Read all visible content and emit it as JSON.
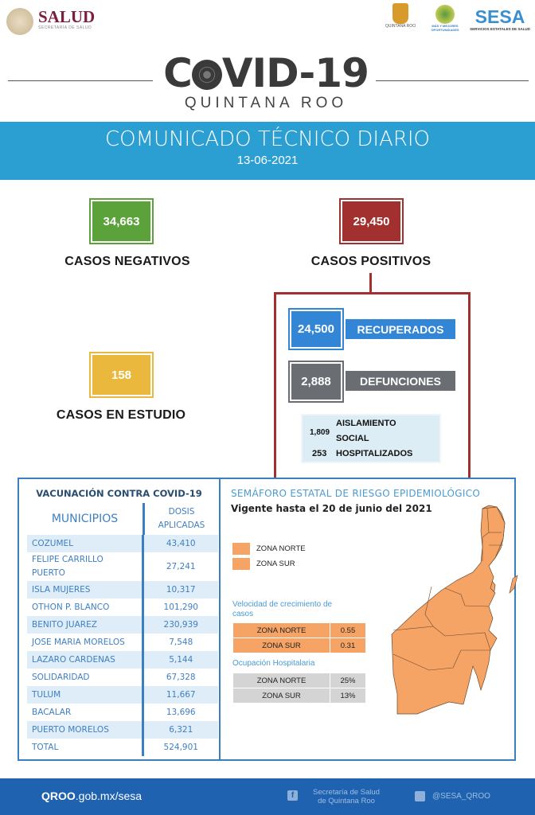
{
  "header": {
    "salud": "SALUD",
    "salud_sub": "SECRETARÍA DE SALUD",
    "qroo_logo": "QUINTANA ROO",
    "mas_logo": "MÁS Y MEJORES OPORTUNIDADES",
    "sesa": "SESA",
    "sesa_sub": "SERVICIOS ESTATALES DE SALUD"
  },
  "title": {
    "covid": "COVID-19",
    "covid_c": "C",
    "covid_rest": "VID-19",
    "region": "QUINTANA ROO"
  },
  "banner": {
    "title": "COMUNICADO TÉCNICO DIARIO",
    "date": "13-06-2021"
  },
  "stats": {
    "negativos": {
      "value": "34,663",
      "label": "CASOS NEGATIVOS"
    },
    "positivos": {
      "value": "29,450",
      "label": "CASOS POSITIVOS"
    },
    "estudio": {
      "value": "158",
      "label": "CASOS EN ESTUDIO"
    },
    "recuperados": {
      "value": "24,500",
      "label": "RECUPERADOS"
    },
    "defunciones": {
      "value": "2,888",
      "label": "DEFUNCIONES"
    },
    "aislamiento": {
      "value": "1,809",
      "label_1": "AISLAMIENTO",
      "label_2": "SOCIAL"
    },
    "hospitalizados": {
      "value": "253",
      "label": "HOSPITALIZADOS"
    }
  },
  "colors": {
    "green": "#5ba23b",
    "red": "#a2302e",
    "yellow": "#e9b83c",
    "blue": "#3385d6",
    "gray": "#6a6e72",
    "banner": "#2b9fd2",
    "footer": "#1f63b0",
    "orange": "#f5a465"
  },
  "vacunacion": {
    "title": "VACUNACIÓN CONTRA COVID-19",
    "col_municipios": "MUNICIPIOS",
    "col_dosis_1": "DOSIS",
    "col_dosis_2": "APLICADAS",
    "rows": [
      {
        "municipio": "COZUMEL",
        "dosis": "43,410"
      },
      {
        "municipio": "FELIPE CARRILLO PUERTO",
        "dosis": "27,241"
      },
      {
        "municipio": "ISLA MUJERES",
        "dosis": "10,317"
      },
      {
        "municipio": "OTHON P. BLANCO",
        "dosis": "101,290"
      },
      {
        "municipio": "BENITO JUAREZ",
        "dosis": "230,939"
      },
      {
        "municipio": "JOSE MARIA MORELOS",
        "dosis": "7,548"
      },
      {
        "municipio": "LAZARO CARDENAS",
        "dosis": "5,144"
      },
      {
        "municipio": "SOLIDARIDAD",
        "dosis": "67,328"
      },
      {
        "municipio": "TULUM",
        "dosis": "11,667"
      },
      {
        "municipio": "BACALAR",
        "dosis": "13,696"
      },
      {
        "municipio": "PUERTO MORELOS",
        "dosis": "6,321"
      },
      {
        "municipio": "TOTAL",
        "dosis": "524,901"
      }
    ]
  },
  "semaforo": {
    "title": "SEMÁFORO ESTATAL DE RIESGO EPIDEMIOLÓGICO",
    "vigencia": "Vigente hasta el 20 de junio del 2021",
    "legend": [
      {
        "label": "ZONA NORTE",
        "color": "#f5a465"
      },
      {
        "label": "ZONA SUR",
        "color": "#f5a465"
      }
    ],
    "velocidad_title": "Velocidad de crecimiento de casos",
    "velocidad": [
      {
        "zona": "ZONA NORTE",
        "valor": "0.55"
      },
      {
        "zona": "ZONA SUR",
        "valor": "0.31"
      }
    ],
    "ocupacion_title": "Ocupación Hospitalaria",
    "ocupacion": [
      {
        "zona": "ZONA NORTE",
        "valor": "25%"
      },
      {
        "zona": "ZONA SUR",
        "valor": "13%"
      }
    ]
  },
  "footer": {
    "site_bold": "QROO",
    "site_rest": ".gob.mx/sesa",
    "facebook_1": "Secretaría de Salud",
    "facebook_2": "de Quintana Roo",
    "twitter": "@SESA_QROO"
  }
}
